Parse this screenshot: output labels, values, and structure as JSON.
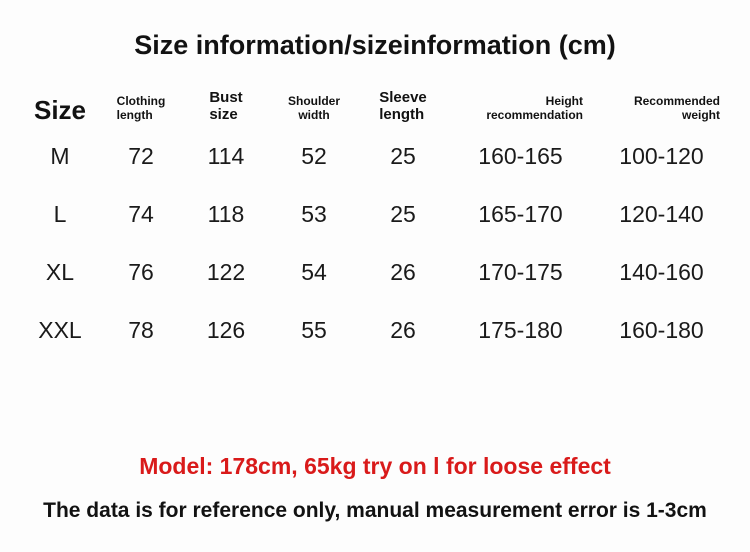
{
  "title": "Size information/sizeinformation (cm)",
  "colors": {
    "accent_red": "#d91a1a",
    "text": "#141414",
    "background": "#fdfdfd"
  },
  "table": {
    "headers": [
      {
        "label": "Size"
      },
      {
        "label": "Clothing\nlength"
      },
      {
        "label": "Bust\nsize"
      },
      {
        "label": "Shoulder\nwidth"
      },
      {
        "label": "Sleeve\nlength"
      },
      {
        "label": "Height\nrecommendation"
      },
      {
        "label": "Recommended\nweight"
      }
    ],
    "rows": [
      [
        "M",
        "72",
        "114",
        "52",
        "25",
        "160-165",
        "100-120"
      ],
      [
        "L",
        "74",
        "118",
        "53",
        "25",
        "165-170",
        "120-140"
      ],
      [
        "XL",
        "76",
        "122",
        "54",
        "26",
        "170-175",
        "140-160"
      ],
      [
        "XXL",
        "78",
        "126",
        "55",
        "26",
        "175-180",
        "160-180"
      ]
    ]
  },
  "notes": {
    "model_note": "Model: 178cm, 65kg try on l for loose effect",
    "disclaimer": "The data is for reference only, manual measurement error is 1-3cm"
  },
  "chart_data": {
    "type": "table",
    "title": "Size information/sizeinformation (cm)",
    "columns": [
      "Size",
      "Clothing length",
      "Bust size",
      "Shoulder width",
      "Sleeve length",
      "Height recommendation",
      "Recommended weight"
    ],
    "rows": [
      [
        "M",
        72,
        114,
        52,
        25,
        "160-165",
        "100-120"
      ],
      [
        "L",
        74,
        118,
        53,
        25,
        "165-170",
        "120-140"
      ],
      [
        "XL",
        76,
        122,
        54,
        26,
        "170-175",
        "140-160"
      ],
      [
        "XXL",
        78,
        126,
        55,
        26,
        "175-180",
        "160-180"
      ]
    ],
    "units": "cm",
    "notes": [
      "Model: 178cm, 65kg try on l for loose effect",
      "The data is for reference only, manual measurement error is 1-3cm"
    ]
  }
}
